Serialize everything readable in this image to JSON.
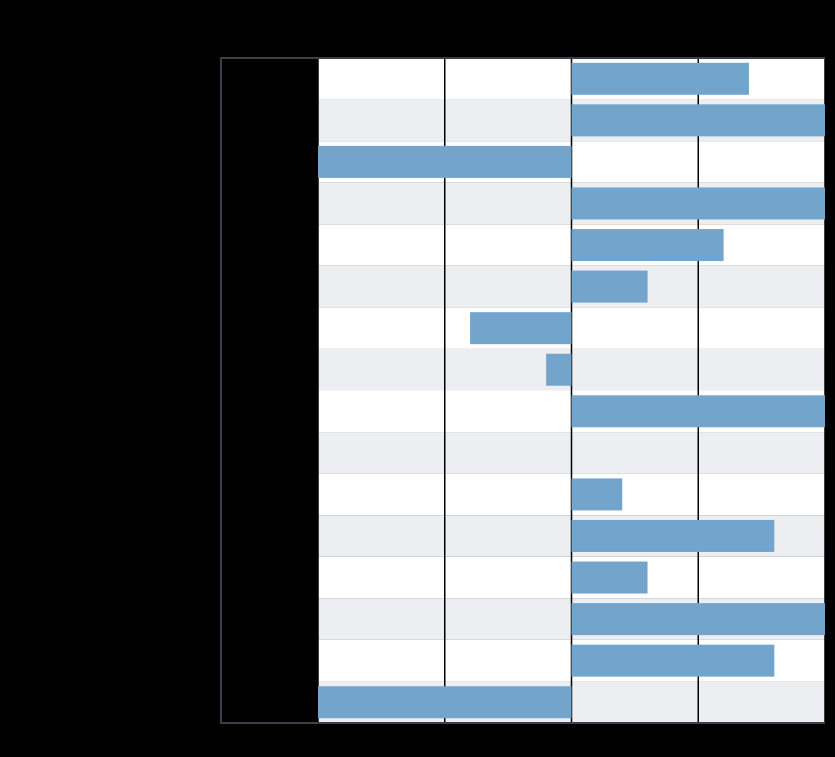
{
  "chart_data": {
    "type": "barh",
    "values": [
      1.4,
      2,
      -2,
      2,
      1.2,
      0.6,
      -0.8,
      -0.2,
      2,
      0,
      0.4,
      1.6,
      0.6,
      2,
      1.6,
      -2
    ],
    "color": "#73a5cc",
    "xlim": [
      -2,
      2
    ],
    "xticks": [
      -2,
      -1,
      0,
      1,
      2
    ],
    "grid": true
  }
}
